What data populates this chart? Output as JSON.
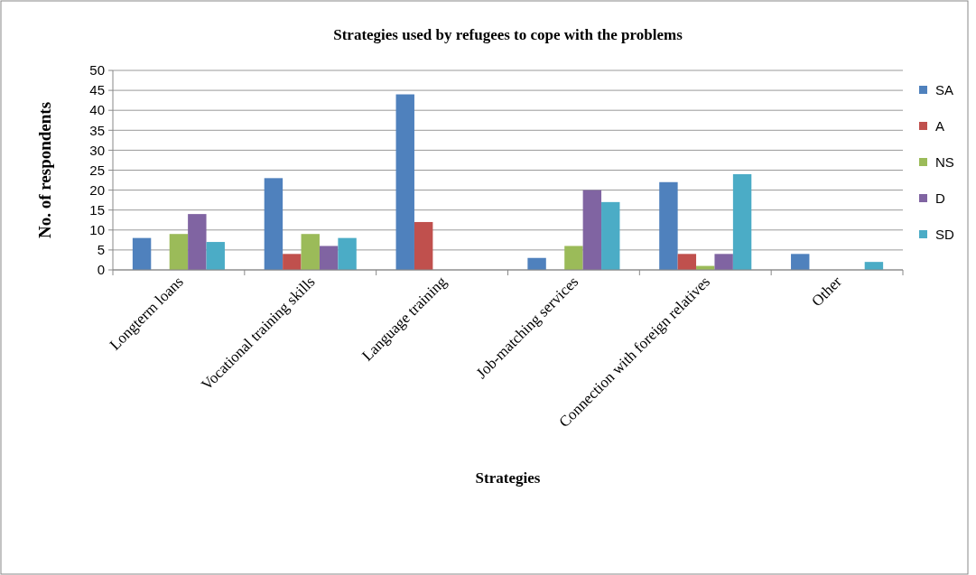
{
  "chart_data": {
    "type": "bar",
    "title": "Strategies used by refugees to cope with the problems",
    "xlabel": "Strategies",
    "ylabel": "No. of respondents",
    "categories": [
      "Longterm loans",
      "Vocational training skills",
      "Language training",
      "Job-matching services",
      "Connection with foreign relatives",
      "Other"
    ],
    "series": [
      {
        "name": "SA",
        "color": "#4f81bd",
        "values": [
          8,
          23,
          44,
          3,
          22,
          4
        ]
      },
      {
        "name": "A",
        "color": "#c0504d",
        "values": [
          0,
          4,
          12,
          0,
          4,
          0
        ]
      },
      {
        "name": "NS",
        "color": "#9bbb59",
        "values": [
          9,
          9,
          0,
          6,
          1,
          0
        ]
      },
      {
        "name": "D",
        "color": "#8064a2",
        "values": [
          14,
          6,
          0,
          20,
          4,
          0
        ]
      },
      {
        "name": "SD",
        "color": "#4bacc6",
        "values": [
          7,
          8,
          0,
          17,
          24,
          2
        ]
      }
    ],
    "ylim": [
      0,
      50
    ],
    "yticks": [
      0,
      5,
      10,
      15,
      20,
      25,
      30,
      35,
      40,
      45,
      50
    ],
    "grid": "y",
    "legend": "right"
  }
}
